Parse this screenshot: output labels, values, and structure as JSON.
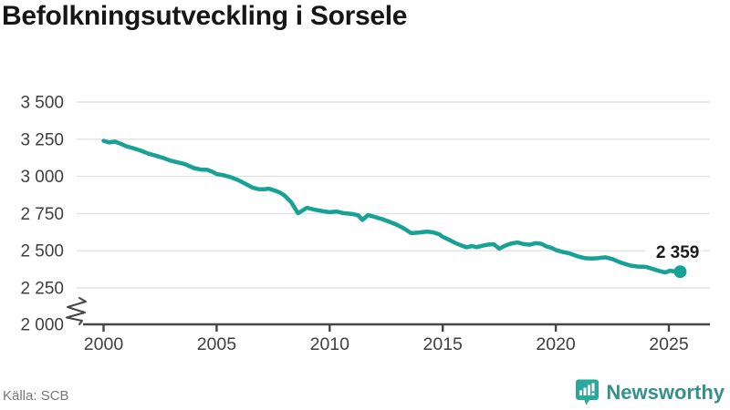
{
  "title": "Befolkningsutveckling i Sorsele",
  "source": "Källa: SCB",
  "branding": {
    "name": "Newsworthy",
    "icon": "newsworthy-chart-bubble-icon",
    "icon_color": "#2aa99b",
    "icon_bar_color": "#ffffff",
    "text_color": "#35908b"
  },
  "colors": {
    "line": "#17a295",
    "grid": "#e2e2e2",
    "axis": "#454545",
    "tick_text": "#3f3f3f",
    "label_text": "#1c1c1c"
  },
  "chart_data": {
    "type": "line",
    "title": "Befolkningsutveckling i Sorsele",
    "xlabel": "",
    "ylabel": "",
    "xlim": [
      1999,
      2027.2
    ],
    "ylim": [
      2000,
      3500
    ],
    "axis_break_at_bottom": true,
    "grid": "horizontal",
    "legend": "none",
    "x_ticks": [
      {
        "value": 2000,
        "label": "2000"
      },
      {
        "value": 2005,
        "label": "2005"
      },
      {
        "value": 2010,
        "label": "2010"
      },
      {
        "value": 2015,
        "label": "2015"
      },
      {
        "value": 2020,
        "label": "2020"
      },
      {
        "value": 2025,
        "label": "2025"
      }
    ],
    "y_ticks": [
      {
        "value": 3500,
        "label": "3 500"
      },
      {
        "value": 3250,
        "label": "3 250"
      },
      {
        "value": 3000,
        "label": "3 000"
      },
      {
        "value": 2750,
        "label": "2 750"
      },
      {
        "value": 2500,
        "label": "2 500"
      },
      {
        "value": 2250,
        "label": "2 250"
      },
      {
        "value": 2000,
        "label": "2 000"
      }
    ],
    "series": [
      {
        "name": "Befolkning i Sorsele",
        "color": "#17a295",
        "end_value": 2359,
        "end_label": "2 359",
        "points": [
          [
            2000,
            3239
          ],
          [
            2000.25,
            3228
          ],
          [
            2000.5,
            3234
          ],
          [
            2000.75,
            3220
          ],
          [
            2001,
            3203
          ],
          [
            2001.3,
            3190
          ],
          [
            2001.6,
            3176
          ],
          [
            2002,
            3152
          ],
          [
            2002.3,
            3140
          ],
          [
            2002.6,
            3126
          ],
          [
            2003,
            3104
          ],
          [
            2003.3,
            3094
          ],
          [
            2003.6,
            3082
          ],
          [
            2004,
            3056
          ],
          [
            2004.3,
            3046
          ],
          [
            2004.6,
            3044
          ],
          [
            2004.8,
            3032
          ],
          [
            2005,
            3016
          ],
          [
            2005.3,
            3008
          ],
          [
            2005.6,
            2996
          ],
          [
            2006,
            2972
          ],
          [
            2006.3,
            2948
          ],
          [
            2006.6,
            2924
          ],
          [
            2006.85,
            2914
          ],
          [
            2007.1,
            2913
          ],
          [
            2007.3,
            2918
          ],
          [
            2007.6,
            2903
          ],
          [
            2007.8,
            2891
          ],
          [
            2008,
            2872
          ],
          [
            2008.3,
            2826
          ],
          [
            2008.6,
            2752
          ],
          [
            2009,
            2789
          ],
          [
            2009.3,
            2777
          ],
          [
            2009.7,
            2766
          ],
          [
            2010,
            2759
          ],
          [
            2010.3,
            2764
          ],
          [
            2010.6,
            2753
          ],
          [
            2011,
            2747
          ],
          [
            2011.25,
            2739
          ],
          [
            2011.45,
            2707
          ],
          [
            2011.7,
            2740
          ],
          [
            2012,
            2727
          ],
          [
            2012.3,
            2713
          ],
          [
            2012.6,
            2697
          ],
          [
            2013,
            2673
          ],
          [
            2013.3,
            2648
          ],
          [
            2013.6,
            2618
          ],
          [
            2014,
            2623
          ],
          [
            2014.3,
            2629
          ],
          [
            2014.6,
            2623
          ],
          [
            2014.85,
            2610
          ],
          [
            2015,
            2593
          ],
          [
            2015.3,
            2572
          ],
          [
            2015.6,
            2549
          ],
          [
            2015.85,
            2534
          ],
          [
            2016.05,
            2523
          ],
          [
            2016.3,
            2532
          ],
          [
            2016.5,
            2524
          ],
          [
            2016.75,
            2534
          ],
          [
            2017,
            2541
          ],
          [
            2017.25,
            2544
          ],
          [
            2017.5,
            2514
          ],
          [
            2017.75,
            2534
          ],
          [
            2018,
            2547
          ],
          [
            2018.3,
            2556
          ],
          [
            2018.6,
            2544
          ],
          [
            2018.85,
            2541
          ],
          [
            2019.1,
            2551
          ],
          [
            2019.35,
            2547
          ],
          [
            2019.6,
            2528
          ],
          [
            2019.8,
            2520
          ],
          [
            2020,
            2505
          ],
          [
            2020.3,
            2492
          ],
          [
            2020.6,
            2482
          ],
          [
            2021,
            2461
          ],
          [
            2021.3,
            2450
          ],
          [
            2021.6,
            2447
          ],
          [
            2021.9,
            2451
          ],
          [
            2022.2,
            2456
          ],
          [
            2022.5,
            2444
          ],
          [
            2022.75,
            2428
          ],
          [
            2023,
            2414
          ],
          [
            2023.3,
            2400
          ],
          [
            2023.6,
            2394
          ],
          [
            2024,
            2391
          ],
          [
            2024.3,
            2377
          ],
          [
            2024.6,
            2363
          ],
          [
            2024.85,
            2354
          ],
          [
            2025.05,
            2366
          ],
          [
            2025.25,
            2361
          ],
          [
            2025.5,
            2359
          ]
        ]
      }
    ]
  }
}
